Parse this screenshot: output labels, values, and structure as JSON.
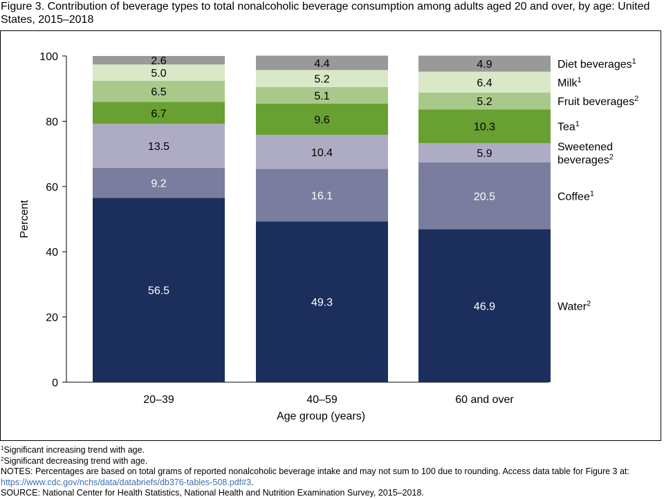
{
  "figure": {
    "title": "Figure 3. Contribution of beverage types to total nonalcoholic beverage consumption among adults aged 20 and over, by age: United States, 2015–2018"
  },
  "chart_data": {
    "type": "bar",
    "stacked": true,
    "categories": [
      "20–39",
      "40–59",
      "60 and over"
    ],
    "xlabel": "Age group (years)",
    "ylabel": "Percent",
    "ylim": [
      0,
      100
    ],
    "yticks": [
      0,
      20,
      40,
      60,
      80,
      100
    ],
    "grid": false,
    "legend_position": "right, labels aligned with top bar segments",
    "series": [
      {
        "name": "Water",
        "sup": "2",
        "color": "#1c2e5b",
        "label_color": "#ffffff",
        "values": [
          56.5,
          49.3,
          46.9
        ]
      },
      {
        "name": "Coffee",
        "sup": "1",
        "color": "#7a7d9d",
        "label_color": "#ffffff",
        "values": [
          9.2,
          16.1,
          20.5
        ]
      },
      {
        "name": "Sweetened beverages",
        "name_lines": [
          "Sweetened",
          "beverages"
        ],
        "sup": "2",
        "color": "#aeacc5",
        "label_color": "#000000",
        "values": [
          13.5,
          10.4,
          5.9
        ]
      },
      {
        "name": "Tea",
        "sup": "1",
        "color": "#69a032",
        "label_color": "#000000",
        "values": [
          6.7,
          9.6,
          10.3
        ]
      },
      {
        "name": "Fruit beverages",
        "sup": "2",
        "color": "#a9c98a",
        "label_color": "#000000",
        "values": [
          6.5,
          5.1,
          5.2
        ]
      },
      {
        "name": "Milk",
        "sup": "1",
        "color": "#d9e8c6",
        "label_color": "#000000",
        "values": [
          5.0,
          5.2,
          6.4
        ]
      },
      {
        "name": "Diet beverages",
        "sup": "1",
        "color": "#999999",
        "label_color": "#000000",
        "values": [
          2.6,
          4.4,
          4.9
        ]
      }
    ]
  },
  "notes": {
    "footnote1_mark": "1",
    "footnote1": "Significant increasing trend with age.",
    "footnote2_mark": "2",
    "footnote2": "Significant decreasing trend with age.",
    "notes_text": "NOTES: Percentages are based on total grams of reported nonalcoholic beverage intake and may not sum to 100 due to rounding. Access data table for Figure 3 at: ",
    "notes_link": "https://www.cdc.gov/nchs/data/databriefs/db376-tables-508.pdf#3",
    "notes_end": ".",
    "source": "SOURCE: National Center for Health Statistics, National Health and Nutrition Examination Survey, 2015–2018."
  }
}
